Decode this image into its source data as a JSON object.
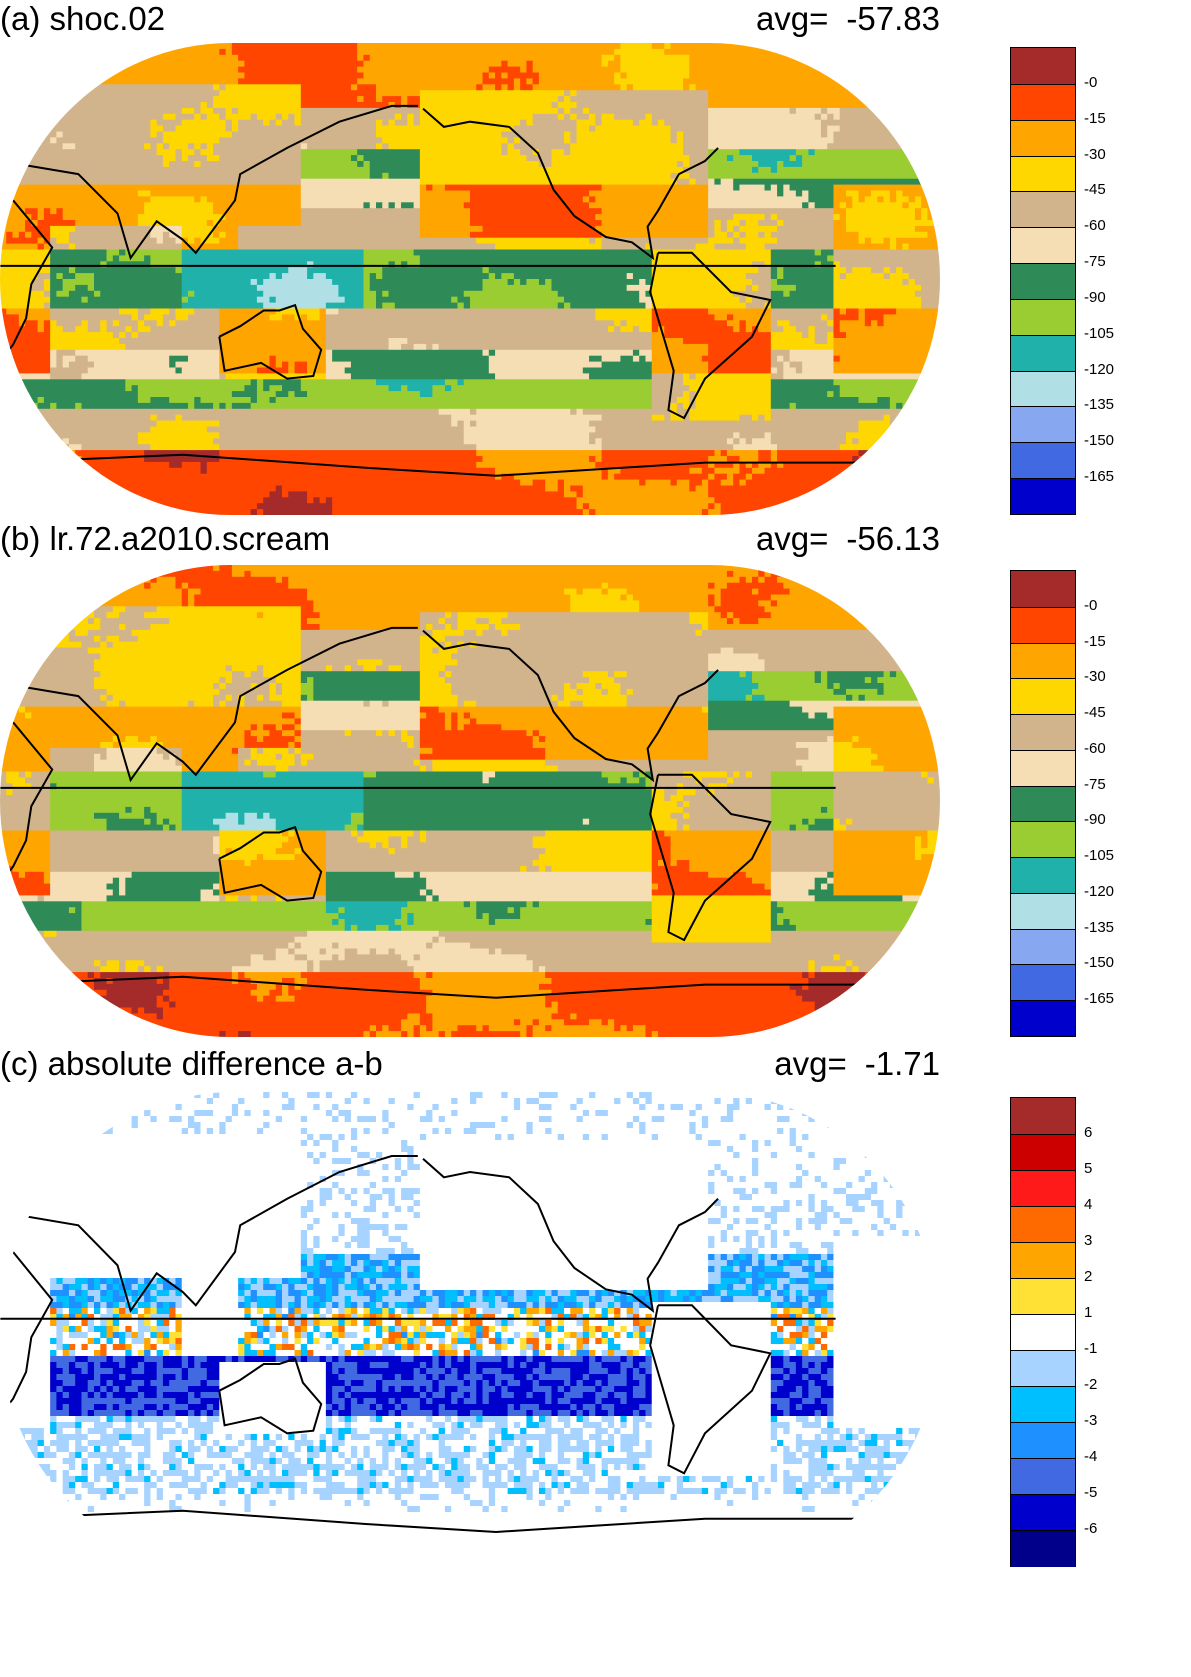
{
  "panels": [
    {
      "title": "(a) shoc.02",
      "avg_label": "avg=",
      "avg_value": "-57.83",
      "field": "base",
      "seed": 1,
      "colorbar": {
        "colors": [
          "#a52a2a",
          "#ff4500",
          "#ffa500",
          "#ffd700",
          "#d2b48c",
          "#f5deb3",
          "#2e8b57",
          "#9acd32",
          "#20b2aa",
          "#b0e0e6",
          "#87a8f0",
          "#4169e1",
          "#0000cd"
        ],
        "labels": [
          "-0",
          "-15",
          "-30",
          "-45",
          "-60",
          "-75",
          "-90",
          "-105",
          "-120",
          "-135",
          "-150",
          "-165"
        ]
      }
    },
    {
      "title": "(b) lr.72.a2010.scream",
      "avg_label": "avg=",
      "avg_value": "-56.13",
      "field": "base",
      "seed": 2,
      "colorbar": {
        "colors": [
          "#a52a2a",
          "#ff4500",
          "#ffa500",
          "#ffd700",
          "#d2b48c",
          "#f5deb3",
          "#2e8b57",
          "#9acd32",
          "#20b2aa",
          "#b0e0e6",
          "#87a8f0",
          "#4169e1",
          "#0000cd"
        ],
        "labels": [
          "-0",
          "-15",
          "-30",
          "-45",
          "-60",
          "-75",
          "-90",
          "-105",
          "-120",
          "-135",
          "-150",
          "-165"
        ]
      }
    },
    {
      "title": "(c) absolute difference a-b",
      "avg_label": "avg=",
      "avg_value": "-1.71",
      "field": "diff",
      "seed": 3,
      "colorbar": {
        "colors": [
          "#a52a2a",
          "#cd0000",
          "#ff1a1a",
          "#ff6a00",
          "#ffa500",
          "#ffe135",
          "#ffffff",
          "#a6d3ff",
          "#00bfff",
          "#1e90ff",
          "#4169e1",
          "#0000cd",
          "#00008b"
        ],
        "labels": [
          "6",
          "5",
          "4",
          "3",
          "2",
          "1",
          "-1",
          "-2",
          "-3",
          "-4",
          "-5",
          "-6"
        ]
      }
    }
  ]
}
